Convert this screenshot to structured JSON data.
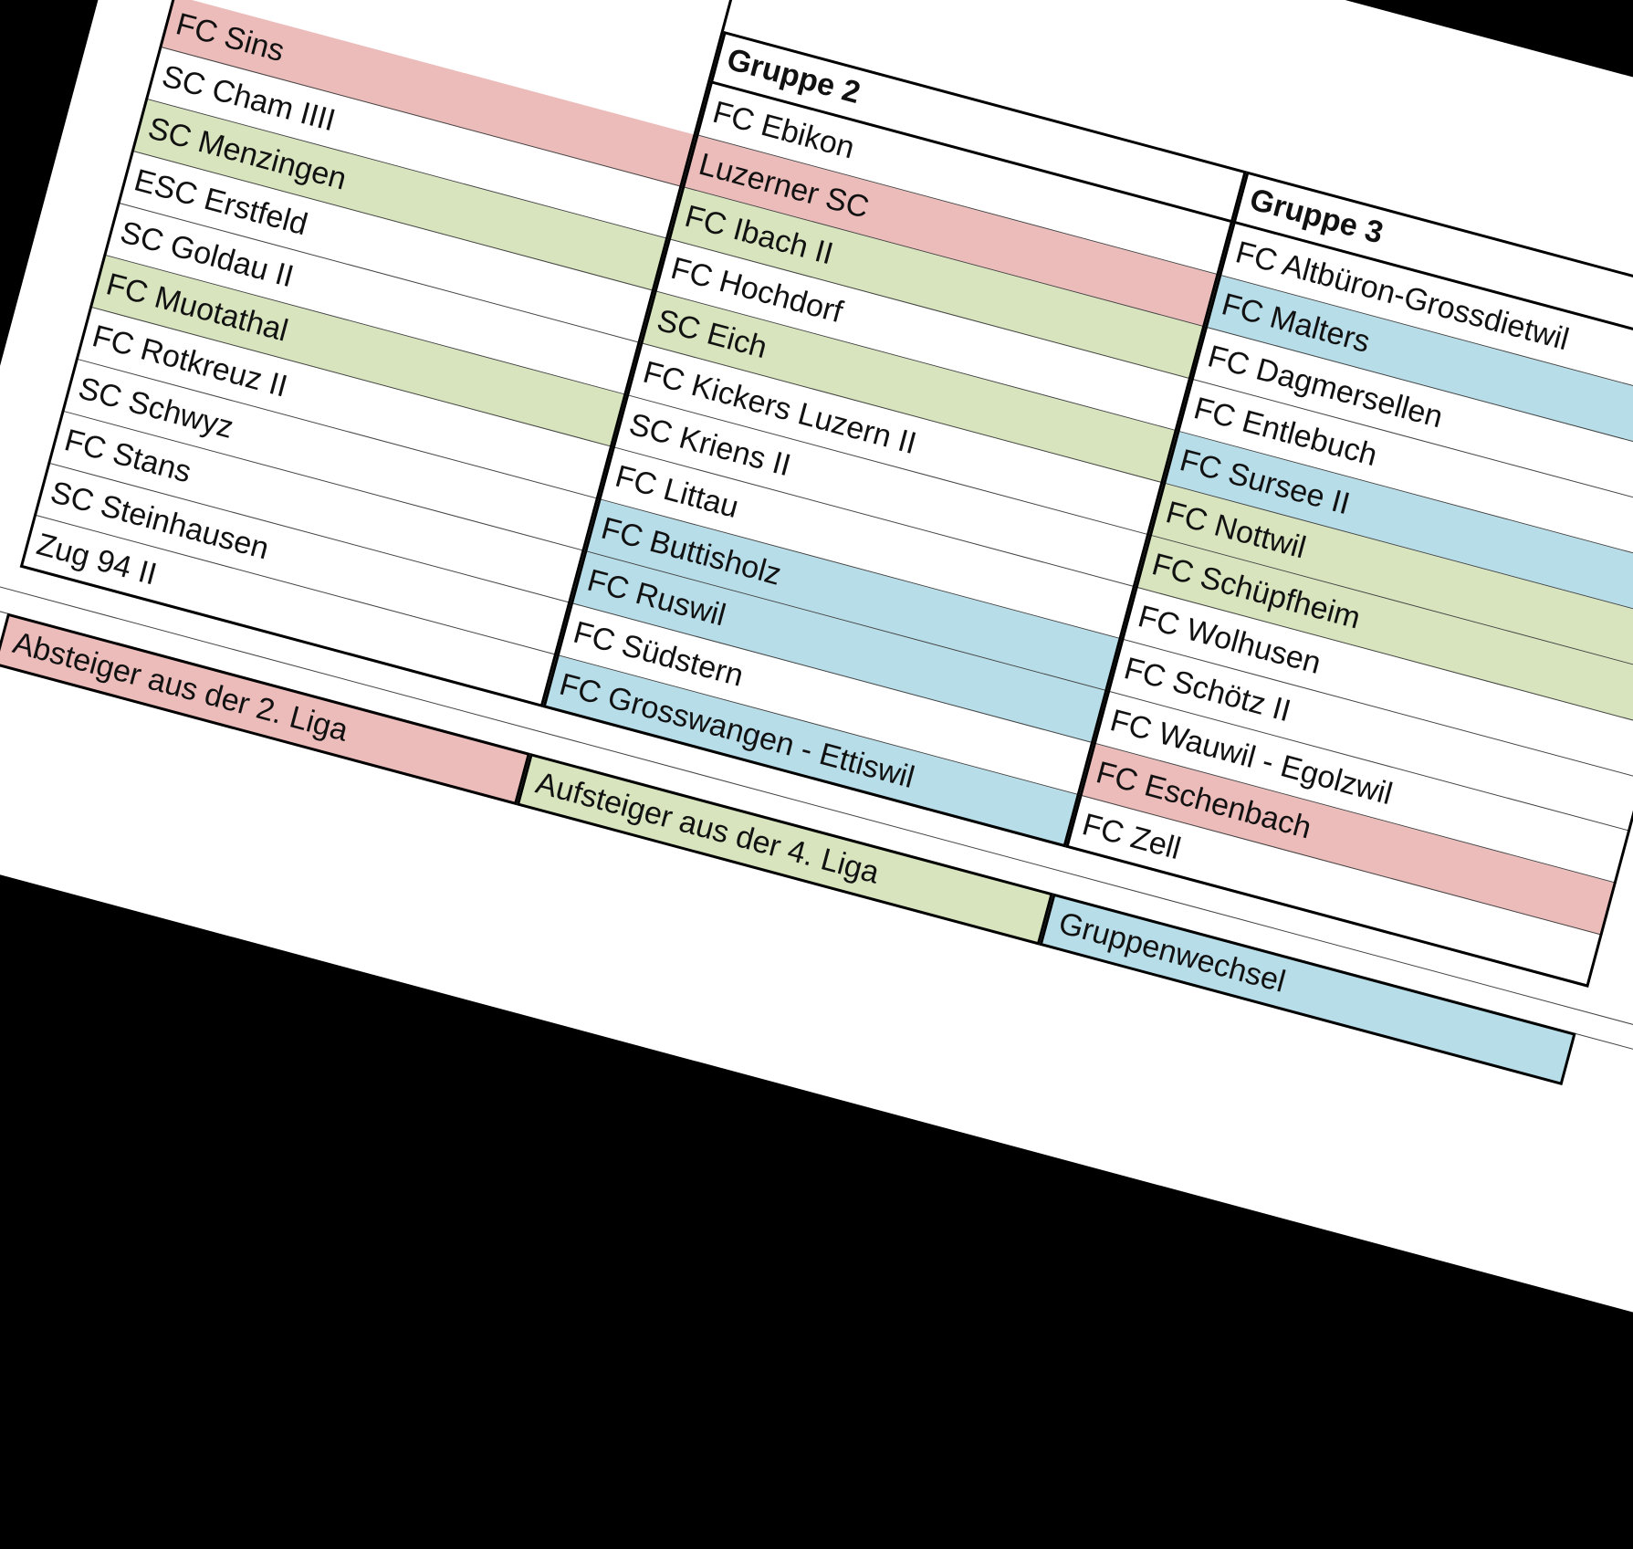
{
  "groups": [
    {
      "teams": [
        {
          "name": "FC Sins",
          "color": "#ecbcbb"
        },
        {
          "name": "SC Cham IIII"
        },
        {
          "name": "SC Menzingen",
          "color": "#d7e4bd"
        },
        {
          "name": "ESC Erstfeld"
        },
        {
          "name": "SC Goldau II"
        },
        {
          "name": "FC Muotathal",
          "color": "#d7e4bd"
        },
        {
          "name": "FC Rotkreuz II"
        },
        {
          "name": "SC Schwyz"
        },
        {
          "name": "FC Stans"
        },
        {
          "name": "SC Steinhausen"
        },
        {
          "name": "Zug 94 II"
        }
      ]
    },
    {
      "title": "Gruppe 2",
      "teams": [
        {
          "name": "FC Ebikon"
        },
        {
          "name": "Luzerner SC",
          "color": "#ecbcbb"
        },
        {
          "name": "FC Ibach II",
          "color": "#d7e4bd"
        },
        {
          "name": "FC Hochdorf"
        },
        {
          "name": "SC Eich",
          "color": "#d7e4bd"
        },
        {
          "name": "FC Kickers Luzern II"
        },
        {
          "name": "SC Kriens II"
        },
        {
          "name": "FC Littau"
        },
        {
          "name": "FC Buttisholz",
          "color": "#b7dde8"
        },
        {
          "name": "FC Ruswil",
          "color": "#b7dde8"
        },
        {
          "name": "FC Südstern"
        },
        {
          "name": "FC Grosswangen - Ettiswil",
          "color": "#b7dde8"
        }
      ]
    },
    {
      "title": "Gruppe 3",
      "teams": [
        {
          "name": "FC Altbüron-Grossdietwil"
        },
        {
          "name": "FC Malters",
          "color": "#b7dde8"
        },
        {
          "name": "FC Dagmersellen"
        },
        {
          "name": "FC Entlebuch"
        },
        {
          "name": "FC Sursee II",
          "color": "#b7dde8"
        },
        {
          "name": "FC Nottwil",
          "color": "#d7e4bd"
        },
        {
          "name": "FC Schüpfheim",
          "color": "#d7e4bd"
        },
        {
          "name": "FC Wolhusen"
        },
        {
          "name": "FC Schötz II"
        },
        {
          "name": "FC Wauwil - Egolzwil"
        },
        {
          "name": "FC Eschenbach",
          "color": "#ecbcbb"
        },
        {
          "name": "FC Zell"
        }
      ]
    }
  ],
  "legend": [
    {
      "label": "Absteiger aus der 2. Liga",
      "color": "#ecbcbb"
    },
    {
      "label": "Aufsteiger aus der 4. Liga",
      "color": "#d7e4bd"
    },
    {
      "label": "Gruppenwechsel",
      "color": "#b7dde8"
    }
  ]
}
